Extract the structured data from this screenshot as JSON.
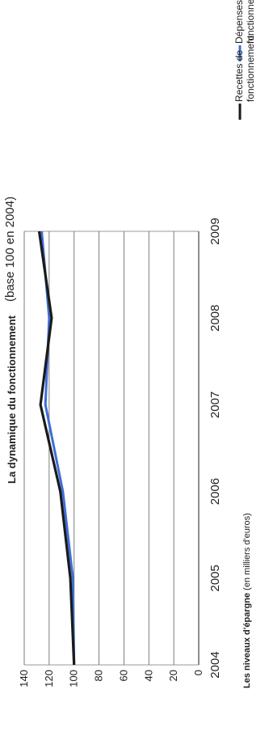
{
  "chart_data": {
    "type": "line",
    "title": "La dynamique du fonctionnement",
    "subtitle": "(base 100 en 2004)",
    "footer_bold": "Les niveaux d'épargne",
    "footer_rest": "(en milliers d'euros)",
    "x": [
      2004,
      2005,
      2006,
      2007,
      2008,
      2009
    ],
    "x_tick_labels": [
      "2004",
      "2005",
      "2006",
      "2007",
      "2008",
      "2009"
    ],
    "y_ticks": [
      0,
      20,
      40,
      60,
      80,
      100,
      120,
      140
    ],
    "y_tick_labels": [
      "0",
      "20",
      "40",
      "60",
      "80",
      "100",
      "120",
      "140"
    ],
    "ylim": [
      0,
      140
    ],
    "xlim": [
      2004,
      2009
    ],
    "grid": true,
    "legend_position": "right",
    "rotation": "rotated 90° counter-clockwise",
    "series": [
      {
        "name": "Dépenses de fonctionnement",
        "legend_lines": [
          "Dépenses de",
          "fonctionnement"
        ],
        "color": "#3f6fd6",
        "values": [
          100,
          101,
          109,
          123,
          120,
          126
        ]
      },
      {
        "name": "Recettes de fonctionnement",
        "legend_lines": [
          "Recettes de",
          "fonctionnement"
        ],
        "color": "#1a1a1a",
        "values": [
          100,
          103,
          111,
          127,
          118,
          128
        ]
      }
    ]
  }
}
